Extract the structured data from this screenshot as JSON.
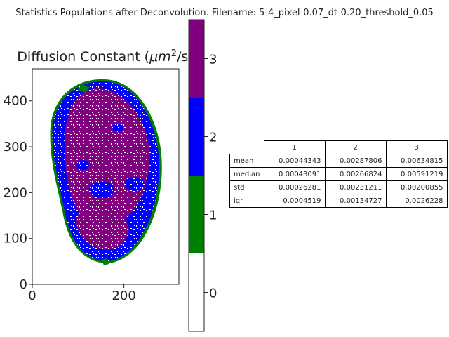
{
  "suptitle": "Statistics Populations after Deconvolution. Filename: 5-4_pixel-0.07_dt-0.20_threshold_0.05",
  "chart_data": [
    {
      "type": "heatmap",
      "title": "Diffusion Constant (μm²/s)",
      "title_prefix": "Diffusion Constant (",
      "title_unit": "μm",
      "title_sup": "2",
      "title_suffix": "/s)",
      "xlim": [
        0,
        320
      ],
      "ylim": [
        0,
        470
      ],
      "x_ticks": [
        "0",
        "200"
      ],
      "y_ticks": [
        "0",
        "100",
        "200",
        "300",
        "400"
      ],
      "description": "segmented cell mask colored by population label",
      "colormap": [
        "#ffffff",
        "#008000",
        "#0000ff",
        "#800080"
      ],
      "colorbar": {
        "ticks": [
          "0",
          "1",
          "2",
          "3"
        ],
        "range": [
          0,
          4
        ]
      }
    },
    {
      "type": "table",
      "columns": [
        "1",
        "2",
        "3"
      ],
      "rows": [
        {
          "label": "mean",
          "values": [
            "0.00044343",
            "0.00287806",
            "0.00634815"
          ]
        },
        {
          "label": "median",
          "values": [
            "0.00043091",
            "0.00266824",
            "0.00591219"
          ]
        },
        {
          "label": "std",
          "values": [
            "0.00026281",
            "0.00231211",
            "0.00200855"
          ]
        },
        {
          "label": "iqr",
          "values": [
            "0.0004519",
            "0.00134727",
            "0.0026228"
          ]
        }
      ]
    }
  ]
}
